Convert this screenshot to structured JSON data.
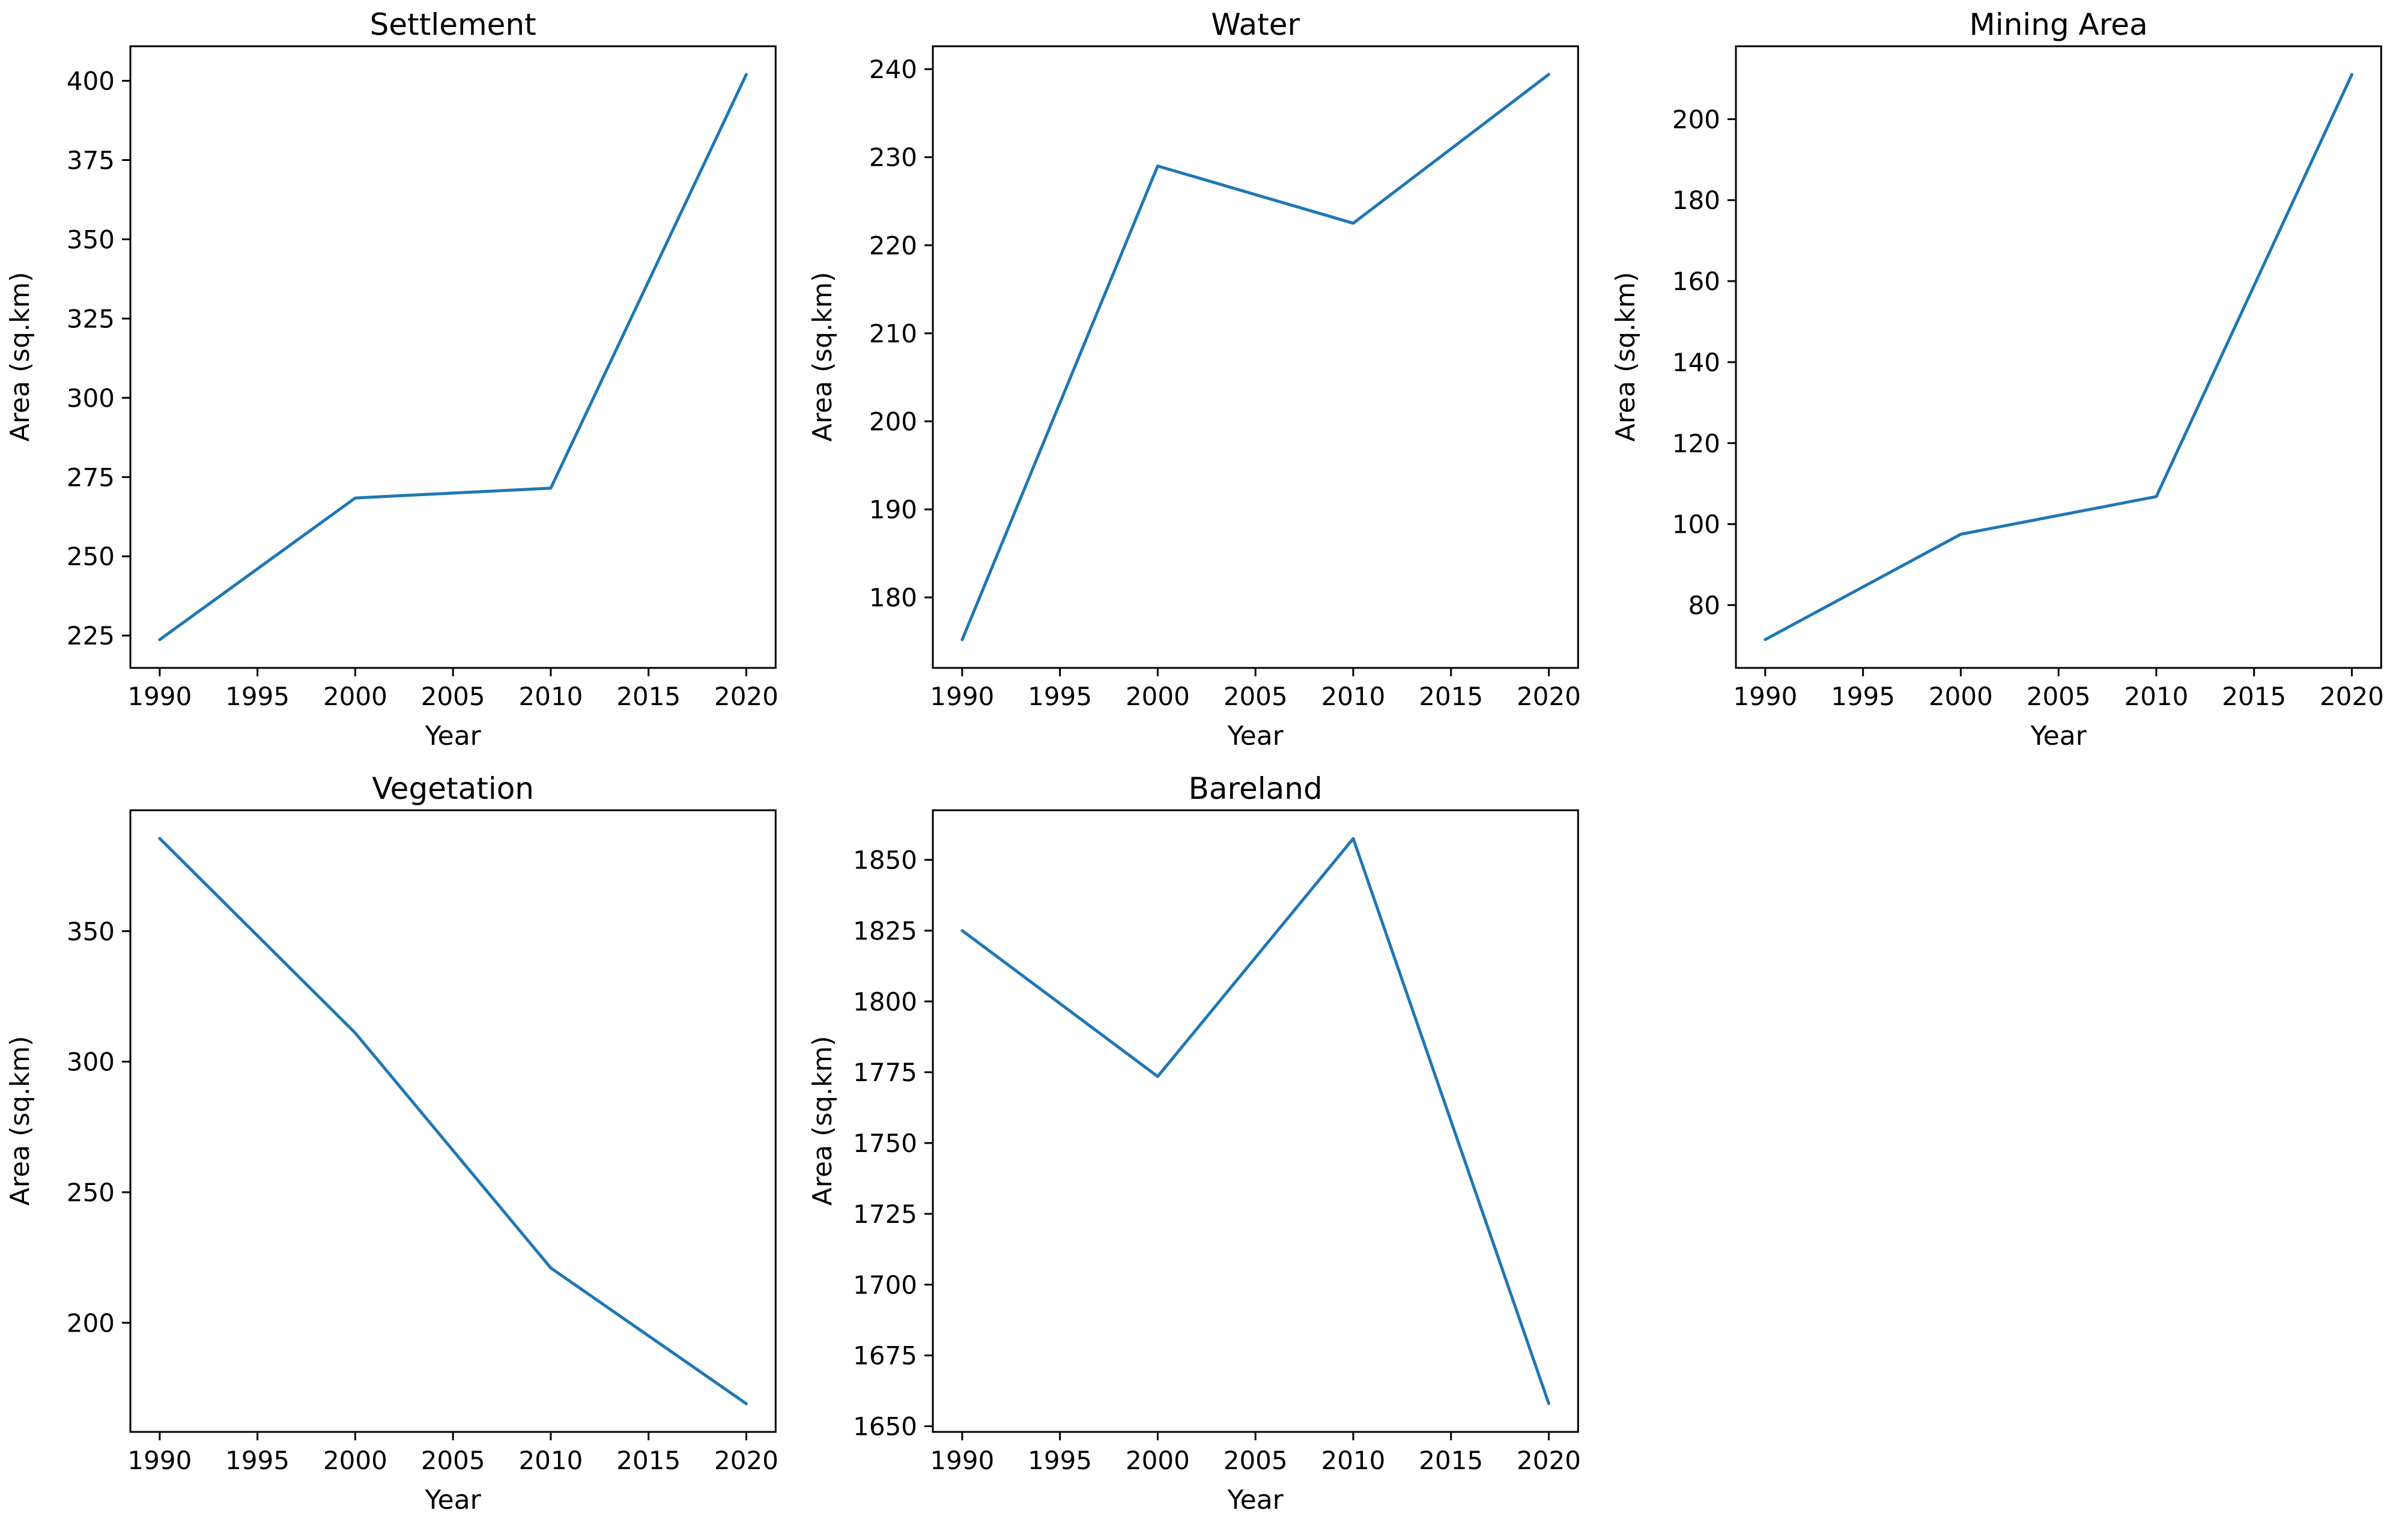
{
  "figure": {
    "background": "#ffffff",
    "text_color": "#000000",
    "line_color": "#1f77b4",
    "rows": 2,
    "cols": 3
  },
  "chart_data": [
    {
      "type": "line",
      "title": "Settlement",
      "xlabel": "Year",
      "ylabel": "Area (sq.km)",
      "x": [
        1990,
        2000,
        2010,
        2020
      ],
      "values": [
        223.7,
        268.4,
        271.5,
        402.0
      ],
      "xticks": [
        1990,
        1995,
        2000,
        2005,
        2010,
        2015,
        2020
      ],
      "yticks": [
        225,
        250,
        275,
        300,
        325,
        350,
        375,
        400
      ],
      "xlim": [
        1988.5,
        2021.5
      ],
      "ylim": [
        214.8,
        410.9
      ],
      "grid": false,
      "legend": "none",
      "line_color": "#1f77b4"
    },
    {
      "type": "line",
      "title": "Water",
      "xlabel": "Year",
      "ylabel": "Area (sq.km)",
      "x": [
        1990,
        2000,
        2010,
        2020
      ],
      "values": [
        175.2,
        229.0,
        222.5,
        239.4
      ],
      "xticks": [
        1990,
        1995,
        2000,
        2005,
        2010,
        2015,
        2020
      ],
      "yticks": [
        180,
        190,
        200,
        210,
        220,
        230,
        240
      ],
      "xlim": [
        1988.5,
        2021.5
      ],
      "ylim": [
        172.0,
        242.6
      ],
      "grid": false,
      "legend": "none",
      "line_color": "#1f77b4"
    },
    {
      "type": "line",
      "title": "Mining Area",
      "xlabel": "Year",
      "ylabel": "Area (sq.km)",
      "x": [
        1990,
        2000,
        2010,
        2020
      ],
      "values": [
        71.5,
        97.5,
        106.8,
        211.0
      ],
      "xticks": [
        1990,
        1995,
        2000,
        2005,
        2010,
        2015,
        2020
      ],
      "yticks": [
        80,
        100,
        120,
        140,
        160,
        180,
        200
      ],
      "xlim": [
        1988.5,
        2021.5
      ],
      "ylim": [
        64.5,
        218.0
      ],
      "grid": false,
      "legend": "none",
      "line_color": "#1f77b4"
    },
    {
      "type": "line",
      "title": "Vegetation",
      "xlabel": "Year",
      "ylabel": "Area (sq.km)",
      "x": [
        1990,
        2000,
        2010,
        2020
      ],
      "values": [
        385.5,
        311.0,
        221.0,
        169.0
      ],
      "xticks": [
        1990,
        1995,
        2000,
        2005,
        2010,
        2015,
        2020
      ],
      "yticks": [
        200,
        250,
        300,
        350
      ],
      "xlim": [
        1988.5,
        2021.5
      ],
      "ylim": [
        158.2,
        396.3
      ],
      "grid": false,
      "legend": "none",
      "line_color": "#1f77b4"
    },
    {
      "type": "line",
      "title": "Bareland",
      "xlabel": "Year",
      "ylabel": "Area (sq.km)",
      "x": [
        1990,
        2000,
        2010,
        2020
      ],
      "values": [
        1825.0,
        1773.5,
        1857.5,
        1658.0
      ],
      "xticks": [
        1990,
        1995,
        2000,
        2005,
        2010,
        2015,
        2020
      ],
      "yticks": [
        1650,
        1675,
        1700,
        1725,
        1750,
        1775,
        1800,
        1825,
        1850
      ],
      "xlim": [
        1988.5,
        2021.5
      ],
      "ylim": [
        1648.0,
        1867.5
      ],
      "grid": false,
      "legend": "none",
      "line_color": "#1f77b4"
    }
  ]
}
